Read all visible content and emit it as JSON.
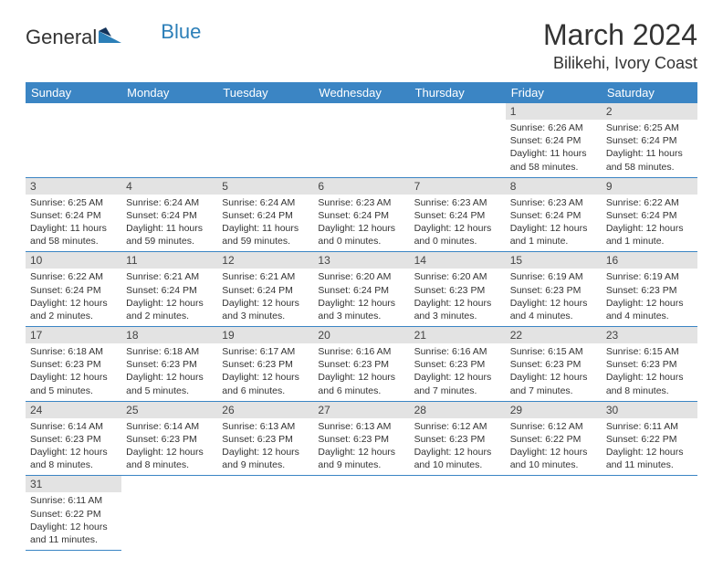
{
  "logo": {
    "textA": "General",
    "textB": "Blue"
  },
  "title": "March 2024",
  "location": "Bilikehi, Ivory Coast",
  "headerColor": "#3b85c4",
  "dayHeaders": [
    "Sunday",
    "Monday",
    "Tuesday",
    "Wednesday",
    "Thursday",
    "Friday",
    "Saturday"
  ],
  "weeks": [
    [
      null,
      null,
      null,
      null,
      null,
      {
        "n": "1",
        "sr": "6:26 AM",
        "ss": "6:24 PM",
        "dl": "11 hours and 58 minutes."
      },
      {
        "n": "2",
        "sr": "6:25 AM",
        "ss": "6:24 PM",
        "dl": "11 hours and 58 minutes."
      }
    ],
    [
      {
        "n": "3",
        "sr": "6:25 AM",
        "ss": "6:24 PM",
        "dl": "11 hours and 58 minutes."
      },
      {
        "n": "4",
        "sr": "6:24 AM",
        "ss": "6:24 PM",
        "dl": "11 hours and 59 minutes."
      },
      {
        "n": "5",
        "sr": "6:24 AM",
        "ss": "6:24 PM",
        "dl": "11 hours and 59 minutes."
      },
      {
        "n": "6",
        "sr": "6:23 AM",
        "ss": "6:24 PM",
        "dl": "12 hours and 0 minutes."
      },
      {
        "n": "7",
        "sr": "6:23 AM",
        "ss": "6:24 PM",
        "dl": "12 hours and 0 minutes."
      },
      {
        "n": "8",
        "sr": "6:23 AM",
        "ss": "6:24 PM",
        "dl": "12 hours and 1 minute."
      },
      {
        "n": "9",
        "sr": "6:22 AM",
        "ss": "6:24 PM",
        "dl": "12 hours and 1 minute."
      }
    ],
    [
      {
        "n": "10",
        "sr": "6:22 AM",
        "ss": "6:24 PM",
        "dl": "12 hours and 2 minutes."
      },
      {
        "n": "11",
        "sr": "6:21 AM",
        "ss": "6:24 PM",
        "dl": "12 hours and 2 minutes."
      },
      {
        "n": "12",
        "sr": "6:21 AM",
        "ss": "6:24 PM",
        "dl": "12 hours and 3 minutes."
      },
      {
        "n": "13",
        "sr": "6:20 AM",
        "ss": "6:24 PM",
        "dl": "12 hours and 3 minutes."
      },
      {
        "n": "14",
        "sr": "6:20 AM",
        "ss": "6:23 PM",
        "dl": "12 hours and 3 minutes."
      },
      {
        "n": "15",
        "sr": "6:19 AM",
        "ss": "6:23 PM",
        "dl": "12 hours and 4 minutes."
      },
      {
        "n": "16",
        "sr": "6:19 AM",
        "ss": "6:23 PM",
        "dl": "12 hours and 4 minutes."
      }
    ],
    [
      {
        "n": "17",
        "sr": "6:18 AM",
        "ss": "6:23 PM",
        "dl": "12 hours and 5 minutes."
      },
      {
        "n": "18",
        "sr": "6:18 AM",
        "ss": "6:23 PM",
        "dl": "12 hours and 5 minutes."
      },
      {
        "n": "19",
        "sr": "6:17 AM",
        "ss": "6:23 PM",
        "dl": "12 hours and 6 minutes."
      },
      {
        "n": "20",
        "sr": "6:16 AM",
        "ss": "6:23 PM",
        "dl": "12 hours and 6 minutes."
      },
      {
        "n": "21",
        "sr": "6:16 AM",
        "ss": "6:23 PM",
        "dl": "12 hours and 7 minutes."
      },
      {
        "n": "22",
        "sr": "6:15 AM",
        "ss": "6:23 PM",
        "dl": "12 hours and 7 minutes."
      },
      {
        "n": "23",
        "sr": "6:15 AM",
        "ss": "6:23 PM",
        "dl": "12 hours and 8 minutes."
      }
    ],
    [
      {
        "n": "24",
        "sr": "6:14 AM",
        "ss": "6:23 PM",
        "dl": "12 hours and 8 minutes."
      },
      {
        "n": "25",
        "sr": "6:14 AM",
        "ss": "6:23 PM",
        "dl": "12 hours and 8 minutes."
      },
      {
        "n": "26",
        "sr": "6:13 AM",
        "ss": "6:23 PM",
        "dl": "12 hours and 9 minutes."
      },
      {
        "n": "27",
        "sr": "6:13 AM",
        "ss": "6:23 PM",
        "dl": "12 hours and 9 minutes."
      },
      {
        "n": "28",
        "sr": "6:12 AM",
        "ss": "6:23 PM",
        "dl": "12 hours and 10 minutes."
      },
      {
        "n": "29",
        "sr": "6:12 AM",
        "ss": "6:22 PM",
        "dl": "12 hours and 10 minutes."
      },
      {
        "n": "30",
        "sr": "6:11 AM",
        "ss": "6:22 PM",
        "dl": "12 hours and 11 minutes."
      }
    ],
    [
      {
        "n": "31",
        "sr": "6:11 AM",
        "ss": "6:22 PM",
        "dl": "12 hours and 11 minutes."
      },
      null,
      null,
      null,
      null,
      null,
      null
    ]
  ],
  "labels": {
    "sunrise": "Sunrise: ",
    "sunset": "Sunset: ",
    "daylight": "Daylight: "
  }
}
